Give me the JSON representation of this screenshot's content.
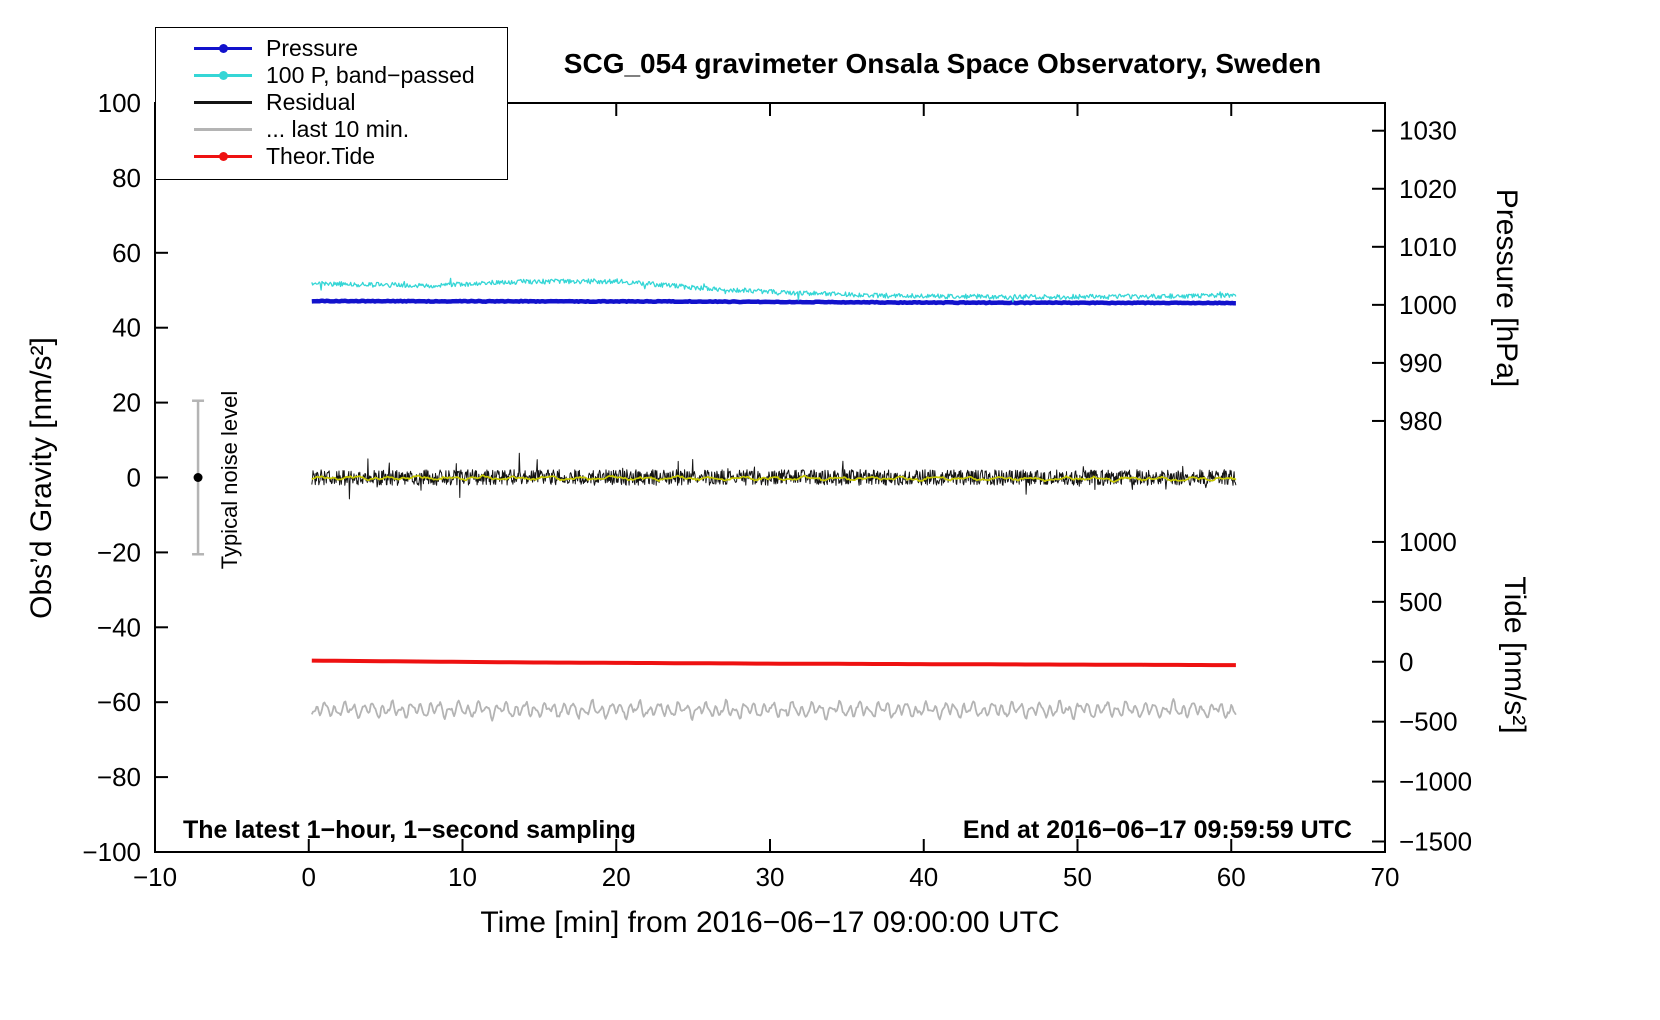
{
  "title": "SCG_054 gravimeter Onsala Space Observatory, Sweden",
  "axes": {
    "xlabel": "Time [min] from 2016−06−17 09:00:00 UTC",
    "ylabel_left": "Obs’d Gravity [nm/s²]",
    "ylabel_pressure": "Pressure [hPa]",
    "ylabel_tide": "Tide [nm/s²]"
  },
  "annotations": {
    "sampling": "The latest 1−hour, 1−second sampling",
    "end_time": "End at 2016−06−17 09:59:59 UTC",
    "noise_label": "Typical noise level"
  },
  "legend": {
    "items": [
      {
        "label": "Pressure",
        "color": "#1212cc",
        "dot": true
      },
      {
        "label": "100 P, band−passed",
        "color": "#35d6d6",
        "dot": true
      },
      {
        "label": "Residual",
        "color": "#141414",
        "dot": false
      },
      {
        "label": "... last 10 min.",
        "color": "#b4b4b4",
        "dot": false
      },
      {
        "label": "Theor.Tide",
        "color": "#ee1111",
        "dot": true
      }
    ]
  },
  "chart_data": {
    "type": "line",
    "xlim": [
      -10,
      70
    ],
    "ylim_gravity": [
      -100,
      100
    ],
    "xticks": [
      {
        "v": -10,
        "label": "−10"
      },
      {
        "v": 0,
        "label": "0"
      },
      {
        "v": 10,
        "label": "10"
      },
      {
        "v": 20,
        "label": "20"
      },
      {
        "v": 30,
        "label": "30"
      },
      {
        "v": 40,
        "label": "40"
      },
      {
        "v": 50,
        "label": "50"
      },
      {
        "v": 60,
        "label": "60"
      },
      {
        "v": 70,
        "label": "70"
      }
    ],
    "yticks_gravity": [
      {
        "v": 100,
        "label": "100"
      },
      {
        "v": 80,
        "label": "80"
      },
      {
        "v": 60,
        "label": "60"
      },
      {
        "v": 40,
        "label": "40"
      },
      {
        "v": 20,
        "label": "20"
      },
      {
        "v": 0,
        "label": "0"
      },
      {
        "v": -20,
        "label": "−20"
      },
      {
        "v": -40,
        "label": "−40"
      },
      {
        "v": -60,
        "label": "−60"
      },
      {
        "v": -80,
        "label": "−80"
      },
      {
        "v": -100,
        "label": "−100"
      }
    ],
    "pressure_ticks": [
      {
        "g": 92.6,
        "label": "1030"
      },
      {
        "g": 77.1,
        "label": "1020"
      },
      {
        "g": 61.6,
        "label": "1010"
      },
      {
        "g": 46.1,
        "label": "1000"
      },
      {
        "g": 30.6,
        "label": "990"
      },
      {
        "g": 15.1,
        "label": "980"
      }
    ],
    "tide_ticks": [
      {
        "g": -17.2,
        "label": "1000"
      },
      {
        "g": -33.2,
        "label": "500"
      },
      {
        "g": -49.2,
        "label": "0"
      },
      {
        "g": -65.2,
        "label": "−500"
      },
      {
        "g": -81.2,
        "label": "−1000"
      },
      {
        "g": -97.2,
        "label": "−1500"
      }
    ],
    "noise_marker": {
      "x": -7.2,
      "center": 0,
      "half_range": 20.5
    },
    "series": [
      {
        "name": "last-10-min-residual",
        "color": "#b4b4b4",
        "width": 1.8,
        "noise": 2.6,
        "mode": "wave",
        "seed": 11,
        "points": 800,
        "baseline": [
          [
            0.2,
            -62.0
          ],
          [
            60.3,
            -62.0
          ]
        ]
      },
      {
        "name": "theoretical-tide",
        "color": "#ee1111",
        "width": 4,
        "noise": 0,
        "mode": "plain",
        "seed": 21,
        "points": 80,
        "baseline": [
          [
            0.2,
            -48.9
          ],
          [
            15,
            -49.4
          ],
          [
            30,
            -49.7
          ],
          [
            45,
            -49.9
          ],
          [
            60.3,
            -50.1
          ]
        ]
      },
      {
        "name": "residual",
        "color": "#141414",
        "width": 1,
        "noise": 2.1,
        "spike": 0.025,
        "mode": "high",
        "seed": 31,
        "points": 1600,
        "baseline": [
          [
            0.2,
            0.0
          ],
          [
            60.3,
            0.0
          ]
        ]
      },
      {
        "name": "residual-lowpassed-yellow",
        "color": "#c6c800",
        "width": 1.7,
        "noise": 0.6,
        "mode": "low",
        "seed": 41,
        "points": 600,
        "baseline": [
          [
            0.2,
            -0.1
          ],
          [
            60.3,
            -0.4
          ]
        ]
      },
      {
        "name": "pressure",
        "color": "#1212cc",
        "width": 4.5,
        "noise": 0.1,
        "mode": "high",
        "seed": 51,
        "points": 500,
        "baseline": [
          [
            0.2,
            47.1
          ],
          [
            25,
            47.0
          ],
          [
            40,
            46.7
          ],
          [
            60.3,
            46.6
          ]
        ]
      },
      {
        "name": "pressure-bandpassed-x100",
        "color": "#35d6d6",
        "width": 1.3,
        "noise": 0.65,
        "spike": 0.02,
        "mode": "high",
        "seed": 61,
        "points": 1000,
        "baseline": [
          [
            0.2,
            51.8
          ],
          [
            8,
            51.2
          ],
          [
            14,
            52.3
          ],
          [
            20,
            52.4
          ],
          [
            26,
            50.4
          ],
          [
            32,
            49.2
          ],
          [
            38,
            48.5
          ],
          [
            46,
            48.2
          ],
          [
            54,
            48.3
          ],
          [
            60.3,
            48.6
          ]
        ]
      }
    ]
  }
}
